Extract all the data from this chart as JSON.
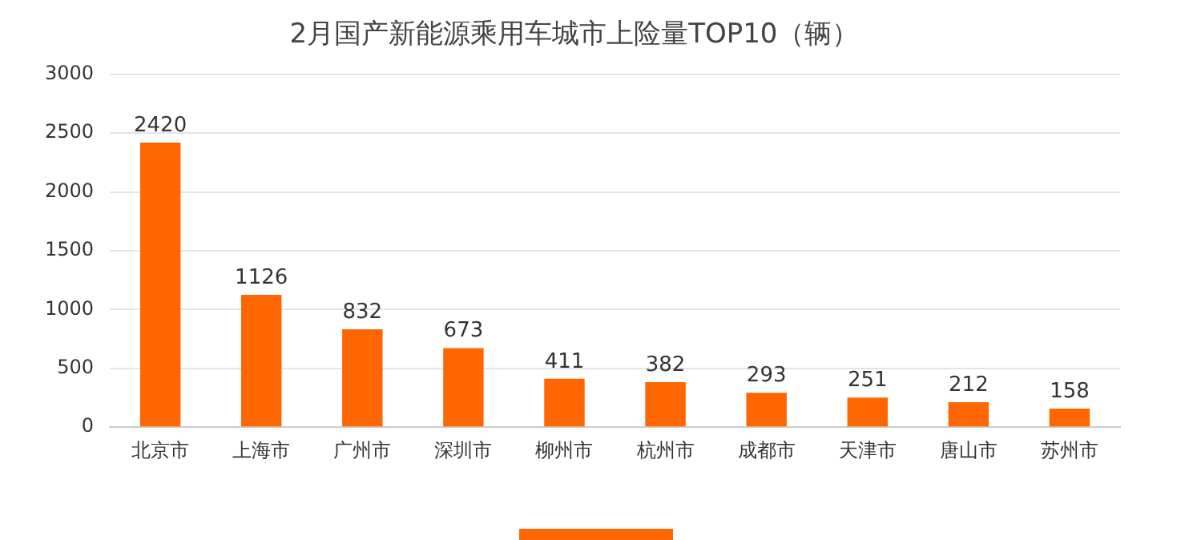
{
  "chart_data": {
    "type": "bar",
    "title": "2月国产新能源乘用车城市上险量TOP10（辆）",
    "categories": [
      "北京市",
      "上海市",
      "广州市",
      "深圳市",
      "柳州市",
      "杭州市",
      "成都市",
      "天津市",
      "唐山市",
      "苏州市"
    ],
    "values": [
      2420,
      1126,
      832,
      673,
      411,
      382,
      293,
      251,
      212,
      158
    ],
    "color": "#ff6600",
    "ylim": [
      0,
      3000
    ],
    "yticks": [
      0,
      500,
      1000,
      1500,
      2000,
      2500,
      3000
    ],
    "grid": "y",
    "data_labels": true
  }
}
